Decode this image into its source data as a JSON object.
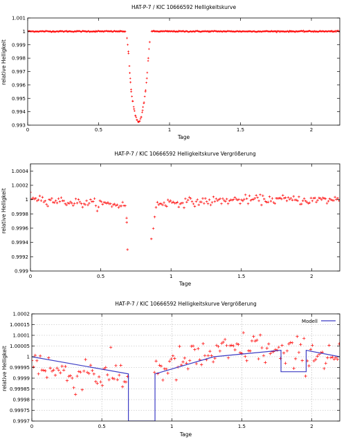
{
  "charts": [
    {
      "id": "top",
      "title": "HAT-P-7 / KIC 10666592 Helligkeitskurve",
      "xlabel": "Tage",
      "ylabel": "relative Helligkeit",
      "xticks": [
        "0",
        "0.5",
        "1",
        "1.5",
        "2"
      ],
      "yticks": [
        "0.993",
        "0.994",
        "0.995",
        "0.996",
        "0.997",
        "0.998",
        "0.999",
        "1",
        "1.001"
      ]
    },
    {
      "id": "mid",
      "title": "HAT-P-7 / KIC 10666592 Helligkeitskurve Vergrößerung",
      "xlabel": "Tage",
      "ylabel": "relative Helligkeit",
      "xticks": [
        "0",
        "0.5",
        "1",
        "1.5",
        "2"
      ],
      "yticks": [
        "0.999",
        "0.9992",
        "0.9994",
        "0.9996",
        "0.9998",
        "1",
        "1.0002",
        "1.0004"
      ]
    },
    {
      "id": "bot",
      "title": "HAT-P-7 / KIC 10666592 Helligkeitskurve Vergrößerung",
      "xlabel": "Tage",
      "ylabel": "relative Helligkeit",
      "legend": "Modell",
      "xticks": [
        "0",
        "0.5",
        "1",
        "1.5",
        "2"
      ],
      "yticks": [
        "0.9997",
        "0.99975",
        "0.9998",
        "0.99985",
        "0.9999",
        "0.99995",
        "1",
        "1.00005",
        "1.0001",
        "1.00015",
        "1.0002"
      ]
    }
  ],
  "chart_data": [
    {
      "type": "scatter",
      "title": "HAT-P-7 / KIC 10666592 Helligkeitskurve",
      "xlabel": "Tage",
      "ylabel": "relative Helligkeit",
      "xlim": [
        0,
        2.2
      ],
      "ylim": [
        0.993,
        1.001
      ],
      "grid": false,
      "series": [
        {
          "color": "#ff0000",
          "marker": "plus",
          "description_points": "out-of-transit ≈1.0 with scatter ±0.00005; transit between 0.70 and 0.86 d reaching ≈0.99325 at 0.78 d",
          "points": [
            [
              0.0,
              1.0
            ],
            [
              0.1,
              1.0
            ],
            [
              0.2,
              1.0
            ],
            [
              0.3,
              1.0
            ],
            [
              0.4,
              1.0
            ],
            [
              0.5,
              1.0
            ],
            [
              0.6,
              1.0
            ],
            [
              0.69,
              1.0
            ],
            [
              0.7,
              0.9995
            ],
            [
              0.71,
              0.9985
            ],
            [
              0.72,
              0.9969
            ],
            [
              0.725,
              0.9962
            ],
            [
              0.73,
              0.9955
            ],
            [
              0.74,
              0.9948
            ],
            [
              0.75,
              0.9942
            ],
            [
              0.76,
              0.9937
            ],
            [
              0.77,
              0.9934
            ],
            [
              0.78,
              0.99325
            ],
            [
              0.79,
              0.9933
            ],
            [
              0.8,
              0.9936
            ],
            [
              0.81,
              0.9941
            ],
            [
              0.82,
              0.9947
            ],
            [
              0.83,
              0.9955
            ],
            [
              0.84,
              0.9965
            ],
            [
              0.85,
              0.998
            ],
            [
              0.86,
              0.9992
            ],
            [
              0.87,
              1.0
            ],
            [
              1.0,
              1.0
            ],
            [
              1.5,
              1.0
            ],
            [
              2.0,
              1.0
            ],
            [
              2.2,
              1.0
            ]
          ]
        }
      ]
    },
    {
      "type": "scatter",
      "title": "HAT-P-7 / KIC 10666592 Helligkeitskurve Vergrößerung",
      "xlabel": "Tage",
      "ylabel": "relative Helligkeit",
      "xlim": [
        0,
        2.2
      ],
      "ylim": [
        0.999,
        1.0005
      ],
      "grid": false,
      "series": [
        {
          "color": "#ff0000",
          "marker": "plus",
          "points": [
            [
              0.0,
              1.00005
            ],
            [
              0.1,
              1.0
            ],
            [
              0.2,
              0.99998
            ],
            [
              0.3,
              0.99996
            ],
            [
              0.4,
              0.99995
            ],
            [
              0.5,
              0.99994
            ],
            [
              0.6,
              0.99993
            ],
            [
              0.68,
              0.99992
            ],
            [
              0.685,
              0.99968
            ],
            [
              0.69,
              0.9993
            ],
            [
              0.86,
              0.99945
            ],
            [
              0.9,
              0.99995
            ],
            [
              1.0,
              0.99996
            ],
            [
              1.2,
              0.99997
            ],
            [
              1.4,
              0.99999
            ],
            [
              1.6,
              1.0
            ],
            [
              1.8,
              1.0
            ],
            [
              2.0,
              0.99999
            ],
            [
              2.2,
              1.0
            ]
          ]
        }
      ]
    },
    {
      "type": "scatter",
      "title": "HAT-P-7 / KIC 10666592 Helligkeitskurve Vergrößerung",
      "xlabel": "Tage",
      "ylabel": "relative Helligkeit",
      "xlim": [
        0,
        2.2
      ],
      "ylim": [
        0.9997,
        1.0002
      ],
      "grid": true,
      "legend": "top-right",
      "series": [
        {
          "color": "#ff0000",
          "marker": "plus",
          "points": [
            [
              0.0,
              1.0
            ],
            [
              0.1,
              0.99995
            ],
            [
              0.2,
              0.99993
            ],
            [
              0.3,
              0.9999
            ],
            [
              0.4,
              0.99995
            ],
            [
              0.5,
              0.9999
            ],
            [
              0.6,
              0.99992
            ],
            [
              0.68,
              0.9999
            ],
            [
              0.9,
              0.99995
            ],
            [
              1.0,
              0.99995
            ],
            [
              1.2,
              1.0
            ],
            [
              1.4,
              1.00002
            ],
            [
              1.6,
              1.00005
            ],
            [
              1.8,
              1.0
            ],
            [
              2.0,
              1.00002
            ],
            [
              2.2,
              1.0
            ]
          ]
        },
        {
          "name": "Modell",
          "color": "#3b3bc4",
          "marker": "line",
          "points": [
            [
              0.0,
              1.0
            ],
            [
              0.69,
              0.99992
            ],
            [
              0.69,
              0.9997
            ],
            [
              0.88,
              0.9997
            ],
            [
              0.88,
              0.99992
            ],
            [
              1.3,
              1.0
            ],
            [
              1.78,
              1.00003
            ],
            [
              1.78,
              0.99993
            ],
            [
              1.96,
              0.99993
            ],
            [
              1.96,
              1.00003
            ],
            [
              2.2,
              1.0
            ]
          ]
        }
      ]
    }
  ]
}
